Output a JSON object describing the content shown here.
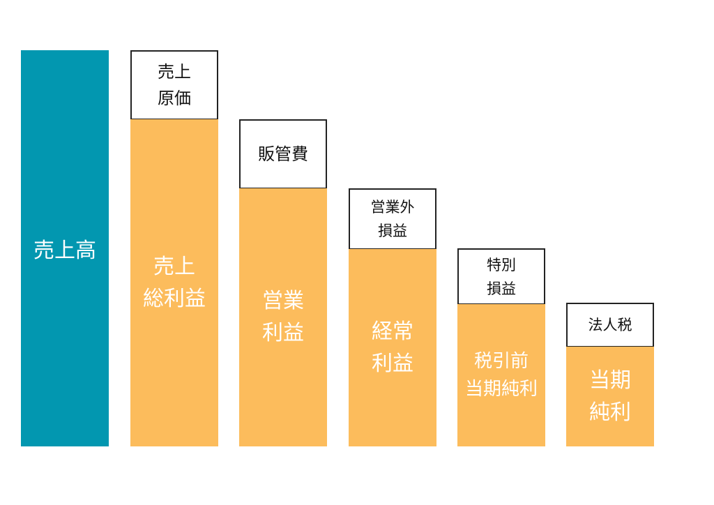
{
  "colors": {
    "revenue_bar": "#0297b0",
    "profit_bar": "#fcbc5c",
    "deduction_box_border": "#222222",
    "deduction_box_fill": "#ffffff"
  },
  "revenue": {
    "label": "売上高"
  },
  "steps": [
    {
      "deduction": [
        "売上",
        "原価"
      ],
      "profit": [
        "売上",
        "総利益"
      ]
    },
    {
      "deduction": [
        "販管費"
      ],
      "profit": [
        "営業",
        "利益"
      ]
    },
    {
      "deduction": [
        "営業外",
        "損益"
      ],
      "profit": [
        "経常",
        "利益"
      ]
    },
    {
      "deduction": [
        "特別",
        "損益"
      ],
      "profit": [
        "税引前",
        "当期純利"
      ]
    },
    {
      "deduction": [
        "法人税"
      ],
      "profit": [
        "当期",
        "純利"
      ]
    }
  ]
}
